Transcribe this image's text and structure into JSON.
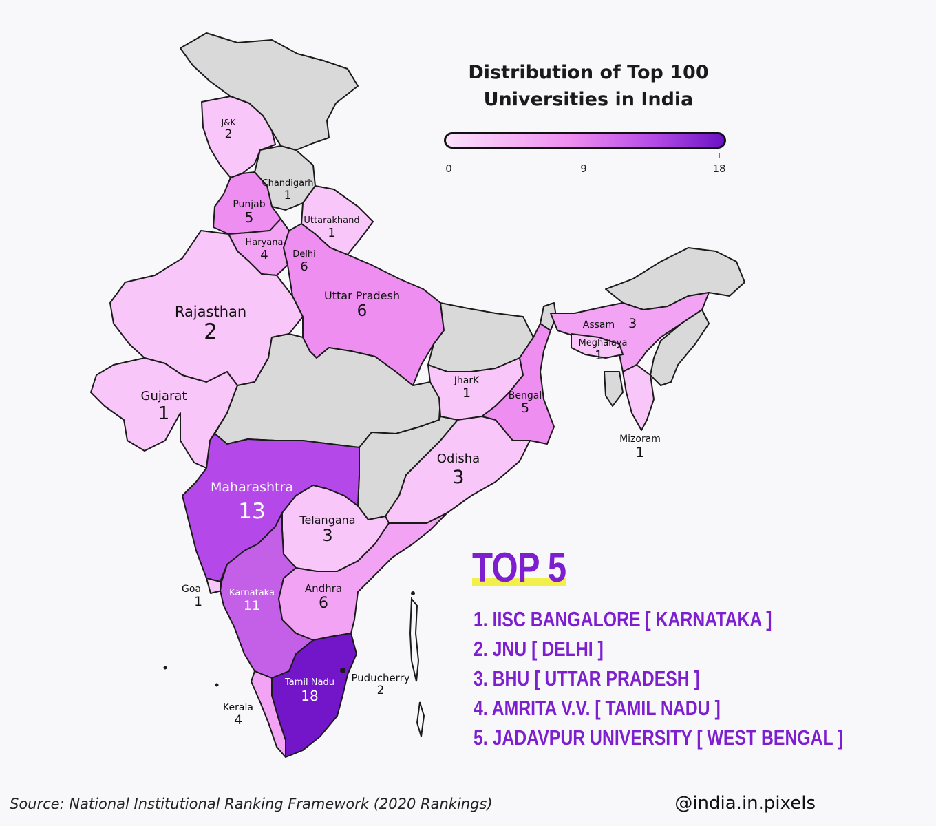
{
  "title": {
    "line1": "Distribution of Top 100",
    "line2": "Universities in India"
  },
  "legend": {
    "min": "0",
    "mid": "9",
    "max": "18",
    "colors": [
      "#fbe2fb",
      "#ef8cf0",
      "#b44ae6",
      "#6a12c4"
    ]
  },
  "regions": [
    {
      "name": "J&K",
      "value": "2"
    },
    {
      "name": "Chandigarh",
      "value": "1"
    },
    {
      "name": "Punjab",
      "value": "5"
    },
    {
      "name": "Uttarakhand",
      "value": "1"
    },
    {
      "name": "Haryana",
      "value": "4"
    },
    {
      "name": "Delhi",
      "value": "6"
    },
    {
      "name": "Rajasthan",
      "value": "2"
    },
    {
      "name": "Uttar Pradesh",
      "value": "6"
    },
    {
      "name": "Assam",
      "value": "3"
    },
    {
      "name": "Meghalaya",
      "value": "1"
    },
    {
      "name": "Gujarat",
      "value": "1"
    },
    {
      "name": "JharK",
      "value": "1"
    },
    {
      "name": "Bengal",
      "value": "5"
    },
    {
      "name": "Mizoram",
      "value": "1"
    },
    {
      "name": "Odisha",
      "value": "3"
    },
    {
      "name": "Maharashtra",
      "value": "13"
    },
    {
      "name": "Telangana",
      "value": "3"
    },
    {
      "name": "Goa",
      "value": "1"
    },
    {
      "name": "Karnataka",
      "value": "11"
    },
    {
      "name": "Andhra",
      "value": "6"
    },
    {
      "name": "Tamil Nadu",
      "value": "18"
    },
    {
      "name": "Puducherry",
      "value": "2"
    },
    {
      "name": "Kerala",
      "value": "4"
    }
  ],
  "top5": {
    "heading": "TOP 5",
    "items": [
      "1. IISC BANGALORE [ KARNATAKA ]",
      "2. JNU [ DELHI ]",
      "3. BHU [ UTTAR PRADESH ]",
      "4. AMRITA V.V. [ TAMIL NADU ]",
      "5. JADAVPUR UNIVERSITY [ WEST BENGAL ]"
    ],
    "heading_color": "#7d1fcf",
    "underline_color": "#f1ef49"
  },
  "source": "Source: National Institutional Ranking Framework (2020 Rankings)",
  "handle": "@india.in.pixels"
}
